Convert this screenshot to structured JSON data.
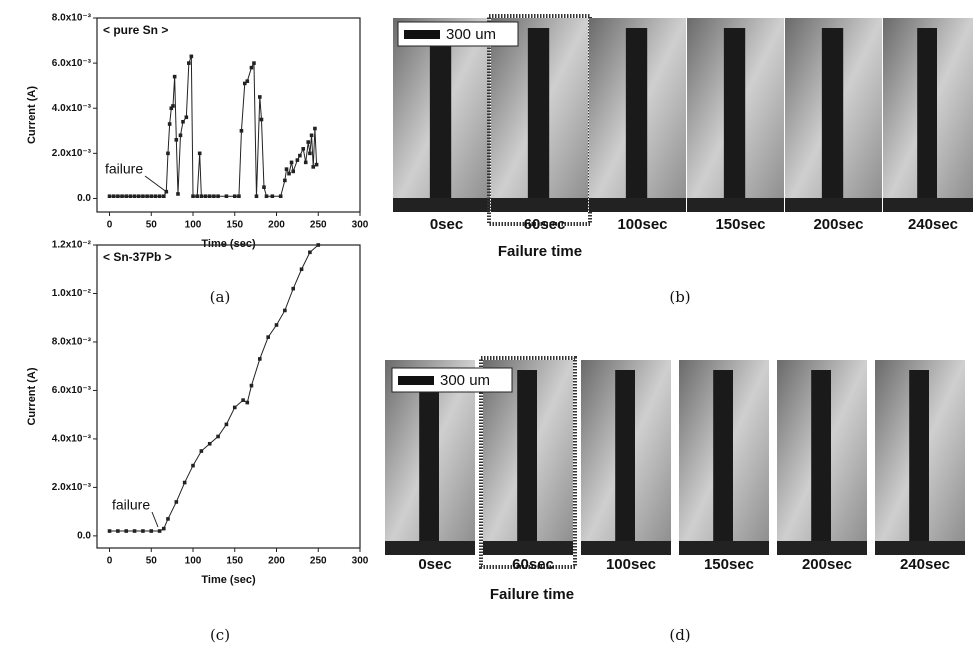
{
  "chart_data": [
    {
      "type": "line",
      "title": "< pure Sn >",
      "x_label": "Time (sec)",
      "y_label": "Current (A)",
      "annotation": "failure",
      "caption": "(a)",
      "x": [
        0,
        5,
        10,
        15,
        20,
        25,
        30,
        35,
        40,
        45,
        50,
        55,
        60,
        65,
        68,
        70,
        72,
        74,
        76,
        78,
        80,
        82,
        85,
        88,
        92,
        95,
        98,
        100,
        105,
        108,
        110,
        115,
        120,
        125,
        130,
        140,
        150,
        155,
        158,
        162,
        165,
        170,
        173,
        176,
        180,
        182,
        185,
        188,
        195,
        205,
        210,
        212,
        215,
        218,
        220,
        225,
        228,
        232,
        235,
        238,
        240,
        242,
        244,
        246,
        248
      ],
      "series": [
        {
          "color": "#222222",
          "values": [
            0.0001,
            0.0001,
            0.0001,
            0.0001,
            0.0001,
            0.0001,
            0.0001,
            0.0001,
            0.0001,
            0.0001,
            0.0001,
            0.0001,
            0.0001,
            0.0001,
            0.0003,
            0.002,
            0.0033,
            0.004,
            0.0041,
            0.0054,
            0.0026,
            0.0002,
            0.0028,
            0.0034,
            0.0036,
            0.006,
            0.0063,
            0.0001,
            0.0001,
            0.002,
            0.0001,
            0.0001,
            0.0001,
            0.0001,
            0.0001,
            0.0001,
            0.0001,
            0.0001,
            0.003,
            0.0051,
            0.0052,
            0.0058,
            0.006,
            0.0001,
            0.0045,
            0.0035,
            0.0005,
            0.0001,
            0.0001,
            0.0001,
            0.0008,
            0.0013,
            0.0011,
            0.0016,
            0.0012,
            0.0017,
            0.0019,
            0.0022,
            0.0016,
            0.0025,
            0.002,
            0.0028,
            0.0014,
            0.0031,
            0.0015
          ]
        }
      ],
      "xlim": [
        -15,
        300
      ],
      "xticks": [
        0,
        50,
        100,
        150,
        200,
        250,
        300
      ],
      "ylim": [
        -0.0006,
        0.008
      ],
      "yticks": [
        {
          "value": 0,
          "label": "0.0"
        },
        {
          "value": 0.002,
          "label": "2.0x10⁻³"
        },
        {
          "value": 0.004,
          "label": "4.0x10⁻³"
        },
        {
          "value": 0.006,
          "label": "6.0x10⁻³"
        },
        {
          "value": 0.008,
          "label": "8.0x10⁻³"
        }
      ]
    },
    {
      "type": "line",
      "title": "< Sn-37Pb >",
      "x_label": "Time (sec)",
      "y_label": "Current (A)",
      "annotation": "failure",
      "caption": "(c)",
      "x": [
        0,
        10,
        20,
        30,
        40,
        50,
        60,
        65,
        70,
        80,
        90,
        100,
        110,
        120,
        130,
        140,
        150,
        160,
        165,
        170,
        180,
        190,
        200,
        210,
        220,
        230,
        240,
        250
      ],
      "series": [
        {
          "color": "#222222",
          "values": [
            0.0002,
            0.0002,
            0.0002,
            0.0002,
            0.0002,
            0.0002,
            0.0002,
            0.0003,
            0.0007,
            0.0014,
            0.0022,
            0.0029,
            0.0035,
            0.0038,
            0.0041,
            0.0046,
            0.0053,
            0.0056,
            0.0055,
            0.0062,
            0.0073,
            0.0082,
            0.0087,
            0.0093,
            0.0102,
            0.011,
            0.0117,
            0.012
          ]
        }
      ],
      "xlim": [
        -15,
        300
      ],
      "xticks": [
        0,
        50,
        100,
        150,
        200,
        250,
        300
      ],
      "ylim": [
        -0.0005,
        0.012
      ],
      "yticks": [
        {
          "value": 0,
          "label": "0.0"
        },
        {
          "value": 0.002,
          "label": "2.0x10⁻³"
        },
        {
          "value": 0.004,
          "label": "4.0x10⁻³"
        },
        {
          "value": 0.006,
          "label": "6.0x10⁻³"
        },
        {
          "value": 0.008,
          "label": "8.0x10⁻³"
        },
        {
          "value": 0.01,
          "label": "1.0x10⁻²"
        },
        {
          "value": 0.012,
          "label": "1.2x10⁻²"
        }
      ]
    }
  ],
  "image_panels": [
    {
      "caption": "(b)",
      "scale_bar": "300 um",
      "highlight_label": "Failure time",
      "frame_labels": [
        "0sec",
        "60sec",
        "100sec",
        "150sec",
        "200sec",
        "240sec"
      ]
    },
    {
      "caption": "(d)",
      "scale_bar": "300 um",
      "highlight_label": "Failure time",
      "frame_labels": [
        "0sec",
        "60sec",
        "100sec",
        "150sec",
        "200sec",
        "240sec"
      ]
    }
  ]
}
